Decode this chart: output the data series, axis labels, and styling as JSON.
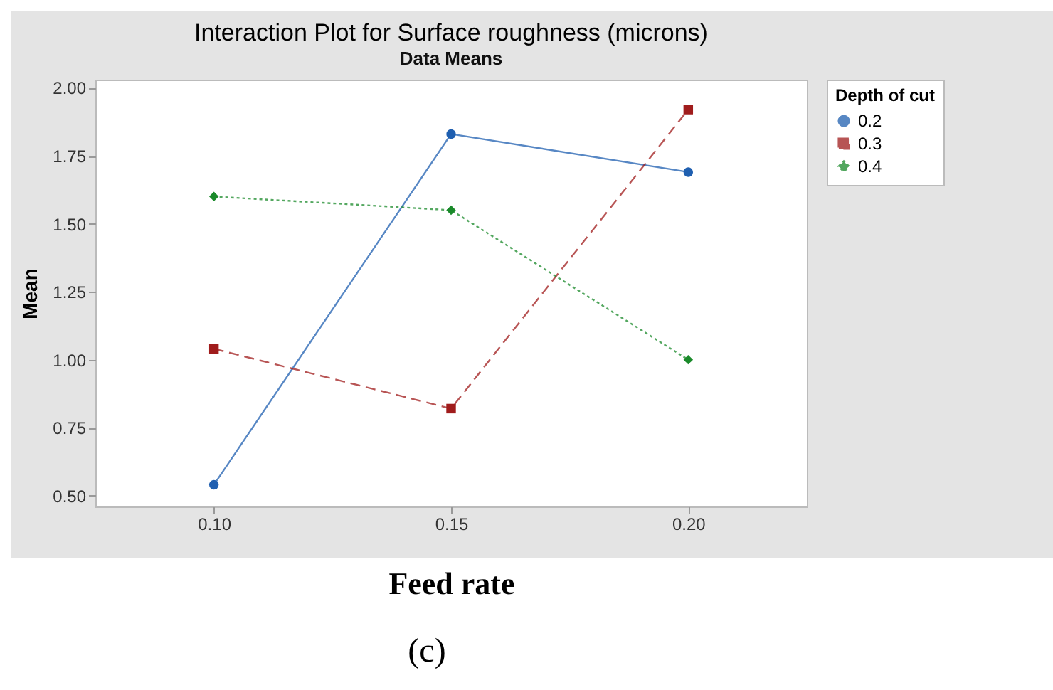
{
  "chart_data": {
    "type": "line",
    "title": "Interaction Plot for Surface roughness (microns)",
    "subtitle": "Data Means",
    "xlabel": "Feed rate",
    "ylabel": "Mean",
    "legend_title": "Depth of cut",
    "categories": [
      "0.10",
      "0.15",
      "0.20"
    ],
    "series": [
      {
        "name": "0.2",
        "color": "#1f5fb0",
        "values": [
          0.54,
          1.83,
          1.69
        ],
        "marker": "circle",
        "line_style": "solid"
      },
      {
        "name": "0.3",
        "color": "#a01c1c",
        "values": [
          1.04,
          0.82,
          1.92
        ],
        "marker": "square",
        "line_style": "dashed"
      },
      {
        "name": "0.4",
        "color": "#1a8a2a",
        "values": [
          1.6,
          1.55,
          1.0
        ],
        "marker": "diamond",
        "line_style": "dotted"
      }
    ],
    "ylim": [
      0.46,
      2.03
    ],
    "yticks": [
      {
        "value": 0.5,
        "label": "0.50"
      },
      0.75,
      {
        "value": 1,
        "label": "1.00"
      },
      1.25,
      {
        "value": 1.5,
        "label": "1.50"
      },
      1.75,
      {
        "value": 2,
        "label": "2.00"
      }
    ],
    "grid": false,
    "legend": "right",
    "annotations": [
      "(c)"
    ]
  }
}
